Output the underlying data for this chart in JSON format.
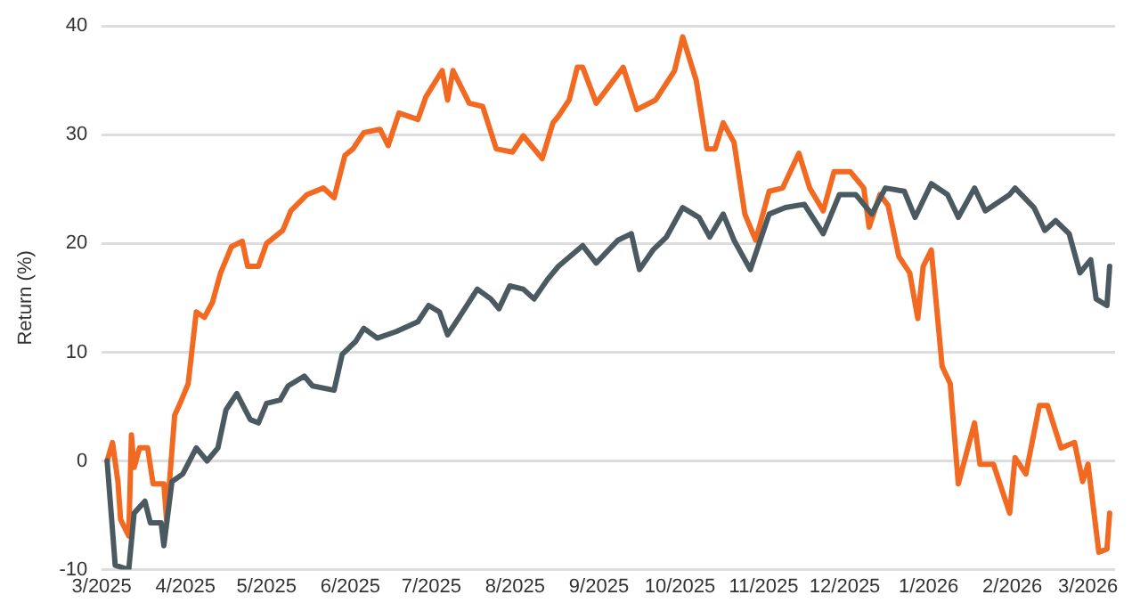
{
  "chart_data": {
    "type": "line",
    "ylabel": "Return (%)",
    "xlim": [
      "2025-03-01",
      "2026-03-11"
    ],
    "xticks": [
      {
        "value": "2025-03-01",
        "label": "3/2025"
      },
      {
        "value": "2025-04-01",
        "label": "4/2025"
      },
      {
        "value": "2025-05-01",
        "label": "5/2025"
      },
      {
        "value": "2025-06-01",
        "label": "6/2025"
      },
      {
        "value": "2025-07-01",
        "label": "7/2025"
      },
      {
        "value": "2025-08-01",
        "label": "8/2025"
      },
      {
        "value": "2025-09-01",
        "label": "9/2025"
      },
      {
        "value": "2025-10-01",
        "label": "10/2025"
      },
      {
        "value": "2025-11-01",
        "label": "11/2025"
      },
      {
        "value": "2025-12-01",
        "label": "12/2025"
      },
      {
        "value": "2026-01-01",
        "label": "1/2026"
      },
      {
        "value": "2026-02-01",
        "label": "2/2026"
      },
      {
        "value": "2026-03-01",
        "label": "3/2026"
      }
    ],
    "ylim": [
      -10,
      40
    ],
    "yticks": [
      -10,
      0,
      10,
      20,
      30,
      40
    ],
    "grid": "y",
    "legend": false,
    "marker": "none",
    "line_style": "solid",
    "series": [
      {
        "color": "#4b5a61",
        "x": [
          "2025-03-03",
          "2025-03-06",
          "2025-03-11",
          "2025-03-13",
          "2025-03-17",
          "2025-03-19",
          "2025-03-23",
          "2025-03-24",
          "2025-03-27",
          "2025-03-31",
          "2025-04-05",
          "2025-04-09",
          "2025-04-13",
          "2025-04-16",
          "2025-04-20",
          "2025-04-25",
          "2025-04-28",
          "2025-05-01",
          "2025-05-06",
          "2025-05-09",
          "2025-05-15",
          "2025-05-18",
          "2025-05-26",
          "2025-05-29",
          "2025-06-03",
          "2025-06-06",
          "2025-06-11",
          "2025-06-18",
          "2025-06-26",
          "2025-06-30",
          "2025-07-04",
          "2025-07-07",
          "2025-07-11",
          "2025-07-18",
          "2025-07-23",
          "2025-07-26",
          "2025-07-30",
          "2025-08-04",
          "2025-08-08",
          "2025-08-13",
          "2025-08-17",
          "2025-08-26",
          "2025-08-31",
          "2025-09-08",
          "2025-09-13",
          "2025-09-16",
          "2025-09-21",
          "2025-09-26",
          "2025-10-02",
          "2025-10-08",
          "2025-10-12",
          "2025-10-17",
          "2025-10-21",
          "2025-10-27",
          "2025-11-03",
          "2025-11-09",
          "2025-11-16",
          "2025-11-23",
          "2025-11-29",
          "2025-12-05",
          "2025-12-11",
          "2025-12-16",
          "2025-12-23",
          "2025-12-27",
          "2026-01-02",
          "2026-01-08",
          "2026-01-12",
          "2026-01-18",
          "2026-01-22",
          "2026-01-31",
          "2026-02-02",
          "2026-02-09",
          "2026-02-13",
          "2026-02-17",
          "2026-02-22",
          "2026-02-26",
          "2026-03-02",
          "2026-03-04",
          "2026-03-08",
          "2026-03-09"
        ],
        "values": [
          0,
          -9.6,
          -10,
          -4.8,
          -3.7,
          -5.7,
          -5.7,
          -7.8,
          -1.9,
          -1.2,
          1.2,
          0,
          1.2,
          4.7,
          6.2,
          3.8,
          3.5,
          5.3,
          5.6,
          6.9,
          7.8,
          6.9,
          6.5,
          9.8,
          11,
          12.2,
          11.3,
          11.9,
          12.8,
          14.3,
          13.7,
          11.6,
          13.1,
          15.8,
          14.9,
          14,
          16.1,
          15.8,
          14.9,
          16.7,
          17.9,
          19.8,
          18.2,
          20.3,
          20.9,
          17.6,
          19.4,
          20.6,
          23.3,
          22.4,
          20.6,
          22.7,
          20.3,
          17.6,
          22.7,
          23.3,
          23.6,
          20.9,
          24.5,
          24.5,
          22.7,
          25.1,
          24.8,
          22.4,
          25.5,
          24.5,
          22.4,
          25.1,
          23,
          24.5,
          25.1,
          23.3,
          21.2,
          22.1,
          20.9,
          17.3,
          18.5,
          14.9,
          14.3,
          17.9
        ]
      },
      {
        "color": "#f26a21",
        "x": [
          "2025-03-03",
          "2025-03-05",
          "2025-03-07",
          "2025-03-08",
          "2025-03-11",
          "2025-03-12",
          "2025-03-13",
          "2025-03-15",
          "2025-03-18",
          "2025-03-20",
          "2025-03-24",
          "2025-03-25",
          "2025-03-28",
          "2025-03-30",
          "2025-04-02",
          "2025-04-05",
          "2025-04-08",
          "2025-04-11",
          "2025-04-14",
          "2025-04-18",
          "2025-04-22",
          "2025-04-24",
          "2025-04-28",
          "2025-05-01",
          "2025-05-07",
          "2025-05-10",
          "2025-05-16",
          "2025-05-22",
          "2025-05-26",
          "2025-05-30",
          "2025-06-02",
          "2025-06-06",
          "2025-06-12",
          "2025-06-15",
          "2025-06-19",
          "2025-06-26",
          "2025-06-29",
          "2025-07-05",
          "2025-07-07",
          "2025-07-09",
          "2025-07-15",
          "2025-07-20",
          "2025-07-25",
          "2025-07-31",
          "2025-08-04",
          "2025-08-11",
          "2025-08-15",
          "2025-08-17",
          "2025-08-21",
          "2025-08-24",
          "2025-08-26",
          "2025-08-31",
          "2025-09-10",
          "2025-09-15",
          "2025-09-22",
          "2025-09-29",
          "2025-10-02",
          "2025-10-07",
          "2025-10-11",
          "2025-10-14",
          "2025-10-17",
          "2025-10-21",
          "2025-10-25",
          "2025-10-29",
          "2025-11-03",
          "2025-11-08",
          "2025-11-14",
          "2025-11-18",
          "2025-11-23",
          "2025-11-27",
          "2025-12-03",
          "2025-12-08",
          "2025-12-10",
          "2025-12-14",
          "2025-12-17",
          "2025-12-21",
          "2025-12-25",
          "2025-12-28",
          "2025-12-30",
          "2026-01-02",
          "2026-01-06",
          "2026-01-09",
          "2026-01-12",
          "2026-01-18",
          "2026-01-20",
          "2026-01-25",
          "2026-01-31",
          "2026-02-02",
          "2026-02-06",
          "2026-02-11",
          "2026-02-14",
          "2026-02-19",
          "2026-02-24",
          "2026-02-27",
          "2026-03-01",
          "2026-03-05",
          "2026-03-08",
          "2026-03-09"
        ],
        "values": [
          0,
          1.7,
          -1.9,
          -5.4,
          -6.9,
          2.4,
          -0.6,
          1.2,
          1.2,
          -2.1,
          -2.1,
          -5.4,
          4.2,
          5.3,
          7.1,
          13.7,
          13.2,
          14.6,
          17.3,
          19.7,
          20.2,
          17.9,
          17.9,
          20,
          21.2,
          23,
          24.5,
          25.1,
          24.2,
          28.1,
          28.7,
          30.2,
          30.5,
          29,
          32,
          31.4,
          33.5,
          35.9,
          33.2,
          35.9,
          32.9,
          32.6,
          28.7,
          28.4,
          29.9,
          27.8,
          31.1,
          31.7,
          33.2,
          36.2,
          36.2,
          32.9,
          36.2,
          32.3,
          33.2,
          35.9,
          39,
          35,
          28.7,
          28.7,
          31.1,
          29.3,
          22.7,
          20.3,
          24.8,
          25.1,
          28.3,
          25.1,
          23,
          26.6,
          26.6,
          25.1,
          21.5,
          24.5,
          23.5,
          18.8,
          17.3,
          13.1,
          17.9,
          19.4,
          8.7,
          7.1,
          -2.1,
          3.5,
          -0.3,
          -0.3,
          -4.8,
          0.3,
          -1.2,
          5.1,
          5.1,
          1.2,
          1.7,
          -1.9,
          -0.3,
          -8.4,
          -8.1,
          -4.8
        ]
      }
    ]
  }
}
